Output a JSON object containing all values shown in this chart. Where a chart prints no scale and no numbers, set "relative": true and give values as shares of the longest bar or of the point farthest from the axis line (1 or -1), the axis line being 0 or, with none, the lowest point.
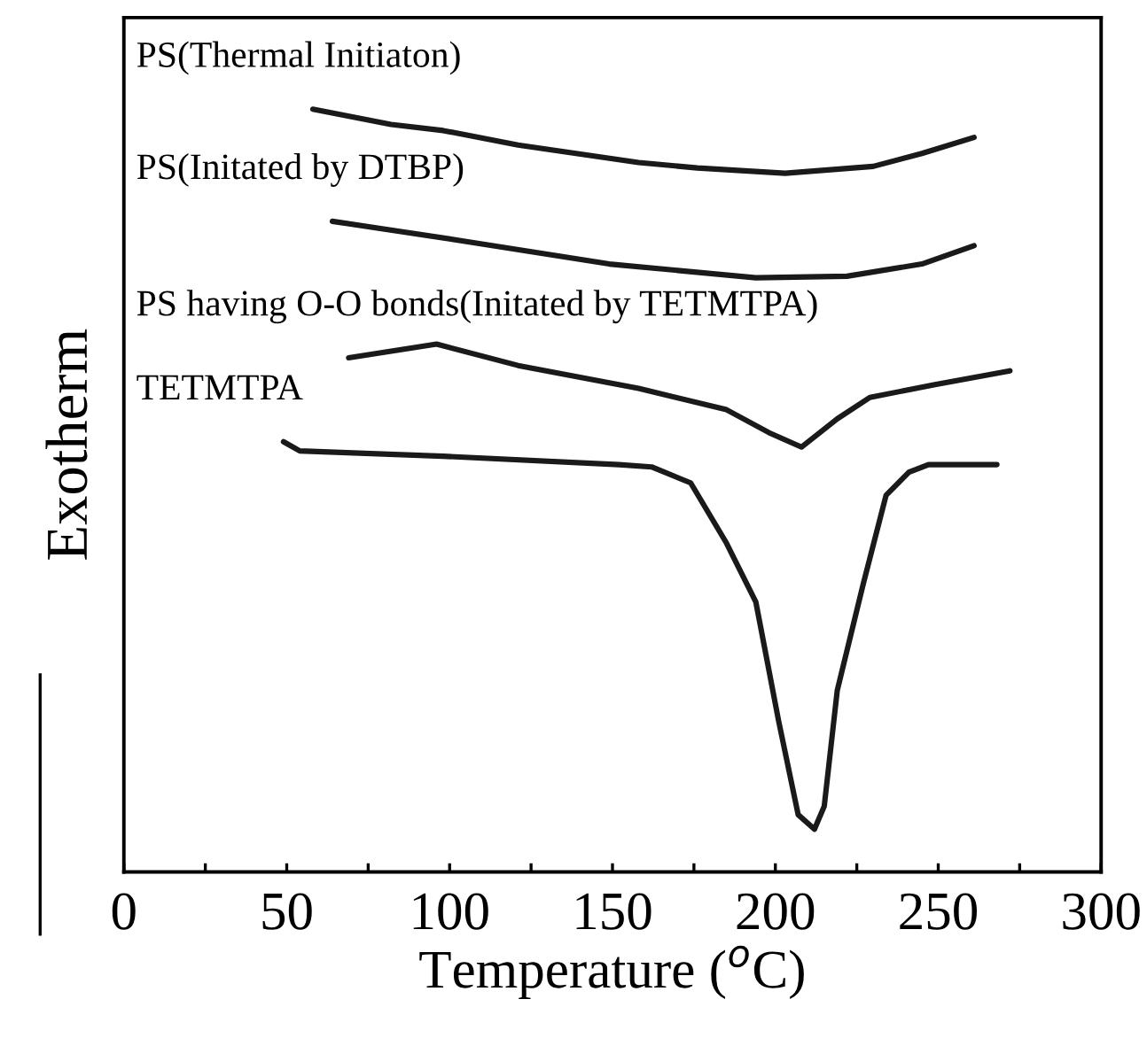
{
  "chart_data": {
    "type": "line",
    "relative": true,
    "xlabel": "Temperature ($^{o}$C)",
    "ylabel": "Exotherm",
    "xlim": [
      0,
      300
    ],
    "xticks": [
      0,
      {
        "value": 25,
        "label": null
      },
      50,
      {
        "value": 75,
        "label": null
      },
      100,
      {
        "value": 125,
        "label": null
      },
      150,
      {
        "value": 175,
        "label": null
      },
      200,
      {
        "value": 225,
        "label": null
      },
      250,
      {
        "value": 275,
        "label": null
      },
      300
    ],
    "grid": false,
    "legend": false,
    "marker": "none",
    "line_style": "solid",
    "tick_labels": "x",
    "series": [
      {
        "name": "PS(Thermal Initiaton)",
        "color": "#1a1a1a",
        "x": [
          58,
          82,
          98,
          121,
          158,
          176,
          203,
          230,
          245,
          261
        ],
        "values": [
          1.0,
          0.98,
          0.972,
          0.953,
          0.93,
          0.923,
          0.916,
          0.925,
          0.942,
          0.963
        ]
      },
      {
        "name": "PS(Initated by DTBP)",
        "color": "#1a1a1a",
        "x": [
          64,
          103,
          149,
          194,
          222,
          245,
          261
        ],
        "values": [
          0.853,
          0.828,
          0.797,
          0.779,
          0.781,
          0.797,
          0.821
        ]
      },
      {
        "name": "PS having O-O bonds(Initated by TETMTPA)",
        "color": "#1a1a1a",
        "x": [
          69,
          96,
          121,
          158,
          185,
          198,
          208,
          219,
          229,
          249,
          272
        ],
        "values": [
          0.674,
          0.692,
          0.664,
          0.634,
          0.606,
          0.576,
          0.557,
          0.594,
          0.622,
          0.639,
          0.657
        ]
      },
      {
        "name": "TETMTPA",
        "color": "#1a1a1a",
        "x": [
          49,
          54,
          98,
          152,
          162,
          174,
          185,
          194,
          201,
          207,
          212,
          215,
          219,
          227,
          234,
          241,
          247,
          268
        ],
        "values": [
          0.564,
          0.552,
          0.545,
          0.534,
          0.531,
          0.51,
          0.431,
          0.354,
          0.198,
          0.075,
          0.056,
          0.086,
          0.238,
          0.378,
          0.494,
          0.524,
          0.534,
          0.534
        ]
      }
    ]
  }
}
